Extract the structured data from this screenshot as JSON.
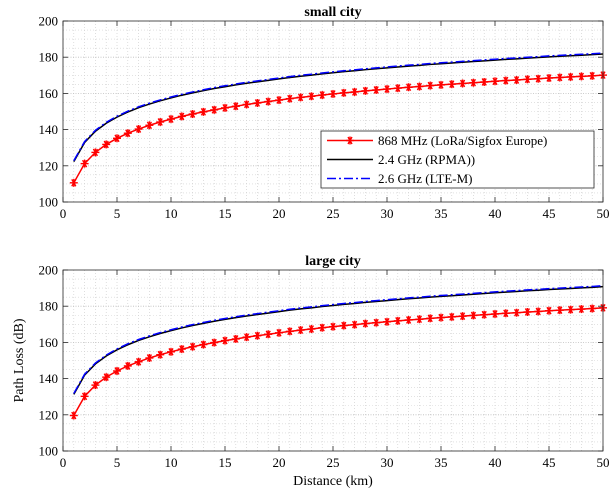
{
  "chart_data": [
    {
      "type": "line",
      "title": "small city",
      "xlabel": "",
      "ylabel": "",
      "xlim": [
        0,
        50
      ],
      "ylim": [
        100,
        200
      ],
      "xticks": [
        0,
        5,
        10,
        15,
        20,
        25,
        30,
        35,
        40,
        45,
        50
      ],
      "yticks": [
        100,
        120,
        140,
        160,
        180,
        200
      ],
      "grid": "minor-dotted",
      "legend": "center-right",
      "series": [
        {
          "name": "868 MHz (LoRa/Sigfox Europe)",
          "color": "#ff0000",
          "style": "solid-asterisk",
          "x": [
            1,
            2,
            3,
            4,
            5,
            6,
            7,
            8,
            9,
            10,
            11,
            12,
            13,
            14,
            15,
            16,
            17,
            18,
            19,
            20,
            21,
            22,
            23,
            24,
            25,
            26,
            27,
            28,
            29,
            30,
            31,
            32,
            33,
            34,
            35,
            36,
            37,
            38,
            39,
            40,
            41,
            42,
            43,
            44,
            45,
            46,
            47,
            48,
            49,
            50
          ],
          "y": [
            110.6,
            121.2,
            127.4,
            131.8,
            135.2,
            138.0,
            140.3,
            142.4,
            144.2,
            145.8,
            147.3,
            148.6,
            149.8,
            150.9,
            152.0,
            152.9,
            153.9,
            154.7,
            155.5,
            156.3,
            157.1,
            157.8,
            158.4,
            159.1,
            159.7,
            160.3,
            160.8,
            161.4,
            161.9,
            162.4,
            162.9,
            163.4,
            163.8,
            164.3,
            164.7,
            165.1,
            165.5,
            165.9,
            166.3,
            166.7,
            167.1,
            167.4,
            167.8,
            168.1,
            168.5,
            168.8,
            169.1,
            169.4,
            169.7,
            170.1
          ]
        },
        {
          "name": "2.4 GHz (RPMA))",
          "color": "#000000",
          "style": "solid",
          "x": [
            1,
            2,
            3,
            4,
            5,
            6,
            7,
            8,
            9,
            10,
            11,
            12,
            13,
            14,
            15,
            16,
            17,
            18,
            19,
            20,
            21,
            22,
            23,
            24,
            25,
            26,
            27,
            28,
            29,
            30,
            31,
            32,
            33,
            34,
            35,
            36,
            37,
            38,
            39,
            40,
            41,
            42,
            43,
            44,
            45,
            46,
            47,
            48,
            49,
            50
          ],
          "y": [
            122.3,
            132.9,
            139.1,
            143.5,
            146.9,
            149.7,
            152.1,
            154.1,
            155.9,
            157.5,
            159.0,
            160.3,
            161.5,
            162.7,
            163.7,
            164.7,
            165.6,
            166.4,
            167.2,
            168.0,
            168.8,
            169.5,
            170.1,
            170.8,
            171.4,
            172.0,
            172.5,
            173.1,
            173.6,
            174.1,
            174.6,
            175.1,
            175.5,
            176.0,
            176.4,
            176.8,
            177.2,
            177.6,
            178.0,
            178.4,
            178.8,
            179.1,
            179.5,
            179.8,
            180.2,
            180.5,
            180.8,
            181.1,
            181.4,
            181.8
          ]
        },
        {
          "name": "2.6 GHz (LTE-M)",
          "color": "#0000ff",
          "style": "dash-dot",
          "x": [
            1,
            2,
            3,
            4,
            5,
            6,
            7,
            8,
            9,
            10,
            11,
            12,
            13,
            14,
            15,
            16,
            17,
            18,
            19,
            20,
            21,
            22,
            23,
            24,
            25,
            26,
            27,
            28,
            29,
            30,
            31,
            32,
            33,
            34,
            35,
            36,
            37,
            38,
            39,
            40,
            41,
            42,
            43,
            44,
            45,
            46,
            47,
            48,
            49,
            50
          ],
          "y": [
            122.8,
            133.4,
            139.6,
            144.0,
            147.4,
            150.2,
            152.6,
            154.6,
            156.4,
            158.0,
            159.5,
            160.8,
            162.0,
            163.2,
            164.2,
            165.2,
            166.1,
            166.9,
            167.7,
            168.5,
            169.3,
            170.0,
            170.6,
            171.3,
            171.9,
            172.5,
            173.0,
            173.6,
            174.1,
            174.6,
            175.1,
            175.6,
            176.0,
            176.5,
            176.9,
            177.3,
            177.7,
            178.1,
            178.5,
            178.9,
            179.3,
            179.6,
            180.0,
            180.3,
            180.7,
            181.0,
            181.3,
            181.6,
            181.9,
            182.3
          ]
        }
      ]
    },
    {
      "type": "line",
      "title": "large city",
      "xlabel": "Distance (km)",
      "ylabel": "Path Loss (dB)",
      "xlim": [
        0,
        50
      ],
      "ylim": [
        100,
        200
      ],
      "xticks": [
        0,
        5,
        10,
        15,
        20,
        25,
        30,
        35,
        40,
        45,
        50
      ],
      "yticks": [
        100,
        120,
        140,
        160,
        180,
        200
      ],
      "grid": "minor-dotted",
      "legend": "none",
      "series": [
        {
          "name": "868 MHz (LoRa/Sigfox Europe)",
          "color": "#ff0000",
          "style": "solid-asterisk",
          "x": [
            1,
            2,
            3,
            4,
            5,
            6,
            7,
            8,
            9,
            10,
            11,
            12,
            13,
            14,
            15,
            16,
            17,
            18,
            19,
            20,
            21,
            22,
            23,
            24,
            25,
            26,
            27,
            28,
            29,
            30,
            31,
            32,
            33,
            34,
            35,
            36,
            37,
            38,
            39,
            40,
            41,
            42,
            43,
            44,
            45,
            46,
            47,
            48,
            49,
            50
          ],
          "y": [
            119.6,
            130.2,
            136.4,
            140.8,
            144.2,
            147.0,
            149.3,
            151.4,
            153.2,
            154.8,
            156.3,
            157.6,
            158.8,
            159.9,
            161.0,
            161.9,
            162.9,
            163.7,
            164.5,
            165.3,
            166.1,
            166.8,
            167.4,
            168.1,
            168.7,
            169.3,
            169.8,
            170.4,
            170.9,
            171.4,
            171.9,
            172.4,
            172.8,
            173.3,
            173.7,
            174.1,
            174.5,
            174.9,
            175.3,
            175.7,
            176.1,
            176.4,
            176.8,
            177.1,
            177.5,
            177.8,
            178.1,
            178.4,
            178.7,
            179.1
          ]
        },
        {
          "name": "2.4 GHz (RPMA))",
          "color": "#000000",
          "style": "solid",
          "x": [
            1,
            2,
            3,
            4,
            5,
            6,
            7,
            8,
            9,
            10,
            11,
            12,
            13,
            14,
            15,
            16,
            17,
            18,
            19,
            20,
            21,
            22,
            23,
            24,
            25,
            26,
            27,
            28,
            29,
            30,
            31,
            32,
            33,
            34,
            35,
            36,
            37,
            38,
            39,
            40,
            41,
            42,
            43,
            44,
            45,
            46,
            47,
            48,
            49,
            50
          ],
          "y": [
            131.3,
            141.9,
            148.1,
            152.5,
            155.9,
            158.7,
            161.1,
            163.1,
            164.9,
            166.5,
            168.0,
            169.3,
            170.5,
            171.7,
            172.7,
            173.7,
            174.6,
            175.4,
            176.2,
            177.0,
            177.8,
            178.5,
            179.1,
            179.8,
            180.4,
            181.0,
            181.5,
            182.1,
            182.6,
            183.1,
            183.6,
            184.1,
            184.5,
            185.0,
            185.4,
            185.8,
            186.2,
            186.6,
            187.0,
            187.4,
            187.8,
            188.1,
            188.5,
            188.8,
            189.2,
            189.5,
            189.8,
            190.1,
            190.4,
            190.8
          ]
        },
        {
          "name": "2.6 GHz (LTE-M)",
          "color": "#0000ff",
          "style": "dash-dot",
          "x": [
            1,
            2,
            3,
            4,
            5,
            6,
            7,
            8,
            9,
            10,
            11,
            12,
            13,
            14,
            15,
            16,
            17,
            18,
            19,
            20,
            21,
            22,
            23,
            24,
            25,
            26,
            27,
            28,
            29,
            30,
            31,
            32,
            33,
            34,
            35,
            36,
            37,
            38,
            39,
            40,
            41,
            42,
            43,
            44,
            45,
            46,
            47,
            48,
            49,
            50
          ],
          "y": [
            131.8,
            142.4,
            148.6,
            153.0,
            156.4,
            159.2,
            161.6,
            163.6,
            165.4,
            167.0,
            168.5,
            169.8,
            171.0,
            172.2,
            173.2,
            174.2,
            175.1,
            175.9,
            176.7,
            177.5,
            178.3,
            179.0,
            179.6,
            180.3,
            180.9,
            181.5,
            182.0,
            182.6,
            183.1,
            183.6,
            184.1,
            184.6,
            185.0,
            185.5,
            185.9,
            186.3,
            186.7,
            187.1,
            187.5,
            187.9,
            188.3,
            188.6,
            189.0,
            189.3,
            189.7,
            190.0,
            190.3,
            190.6,
            190.9,
            191.3
          ]
        }
      ]
    }
  ]
}
